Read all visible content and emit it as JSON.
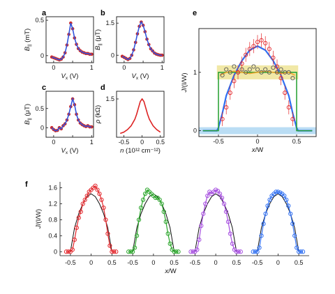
{
  "chart_data": [
    {
      "panel": "a",
      "type": "line",
      "xlabel_var": "V",
      "xlabel_sub": "x",
      "xlabel_unit": " (V)",
      "ylabel_var": "B",
      "ylabel_sub": "||",
      "ylabel_unit": " (mT)",
      "xlim": [
        -0.2,
        1.05
      ],
      "ylim": [
        -0.1,
        0.55
      ],
      "xticks": [
        0,
        0.5,
        1
      ],
      "xticklabels": [
        "0",
        "",
        "1"
      ],
      "yticks": [
        0,
        0.5
      ],
      "yticklabels": [
        "0",
        "0.5"
      ],
      "series": [
        {
          "marker": "circle",
          "color": "#cc2b2b",
          "x": [
            -0.05,
            0.0,
            0.05,
            0.1,
            0.15,
            0.2,
            0.25,
            0.3,
            0.35,
            0.4,
            0.45,
            0.5,
            0.55,
            0.6,
            0.65,
            0.7,
            0.75,
            0.8,
            0.85,
            0.9,
            0.95,
            1.0
          ],
          "y": [
            -0.02,
            -0.03,
            -0.04,
            -0.05,
            -0.06,
            -0.05,
            -0.02,
            0.04,
            0.15,
            0.3,
            0.46,
            0.38,
            0.25,
            0.16,
            0.1,
            0.07,
            0.05,
            0.04,
            0.03,
            0.03,
            0.02,
            0.02
          ]
        },
        {
          "marker": "line",
          "color": "#3355dd",
          "x": [
            -0.05,
            0.0,
            0.05,
            0.1,
            0.15,
            0.2,
            0.25,
            0.3,
            0.35,
            0.4,
            0.45,
            0.5,
            0.55,
            0.6,
            0.65,
            0.7,
            0.75,
            0.8,
            0.85,
            0.9,
            0.95,
            1.0
          ],
          "y": [
            -0.02,
            -0.03,
            -0.04,
            -0.05,
            -0.06,
            -0.05,
            -0.02,
            0.04,
            0.15,
            0.3,
            0.46,
            0.38,
            0.25,
            0.16,
            0.1,
            0.07,
            0.05,
            0.04,
            0.03,
            0.03,
            0.02,
            0.02
          ]
        }
      ]
    },
    {
      "panel": "b",
      "type": "line",
      "xlabel_var": "V",
      "xlabel_sub": "x",
      "xlabel_unit": " (V)",
      "ylabel_var": "B",
      "ylabel_sub": "||",
      "ylabel_unit": " (μT)",
      "xlim": [
        -0.2,
        1.05
      ],
      "ylim": [
        -0.35,
        1.8
      ],
      "xticks": [
        0,
        0.5,
        1
      ],
      "xticklabels": [
        "0",
        "",
        "1"
      ],
      "yticks": [
        0,
        1.5
      ],
      "yticklabels": [
        "0",
        "1.5"
      ],
      "series": [
        {
          "marker": "circle",
          "color": "#cc2b2b",
          "x": [
            -0.05,
            0.0,
            0.05,
            0.1,
            0.15,
            0.2,
            0.25,
            0.3,
            0.35,
            0.4,
            0.45,
            0.5,
            0.55,
            0.6,
            0.65,
            0.7,
            0.75,
            0.8,
            0.85,
            0.9,
            0.95,
            1.0
          ],
          "y": [
            -0.05,
            -0.1,
            -0.15,
            -0.2,
            -0.15,
            0.0,
            0.25,
            0.6,
            1.0,
            1.35,
            1.55,
            1.4,
            1.1,
            0.75,
            0.5,
            0.3,
            0.2,
            0.1,
            0.05,
            0.02,
            0.0,
            0.0
          ]
        },
        {
          "marker": "line",
          "color": "#3355dd",
          "x": [
            -0.05,
            0.0,
            0.05,
            0.1,
            0.15,
            0.2,
            0.25,
            0.3,
            0.35,
            0.4,
            0.45,
            0.5,
            0.55,
            0.6,
            0.65,
            0.7,
            0.75,
            0.8,
            0.85,
            0.9,
            0.95,
            1.0
          ],
          "y": [
            -0.05,
            -0.1,
            -0.15,
            -0.2,
            -0.15,
            0.0,
            0.25,
            0.6,
            1.0,
            1.35,
            1.55,
            1.4,
            1.1,
            0.75,
            0.5,
            0.3,
            0.2,
            0.1,
            0.05,
            0.02,
            0.0,
            0.0
          ]
        }
      ]
    },
    {
      "panel": "c",
      "type": "line",
      "xlabel_var": "V",
      "xlabel_sub": "x",
      "xlabel_unit": " (V)",
      "ylabel_var": "B",
      "ylabel_sub": "||",
      "ylabel_unit": " (μT)",
      "xlim": [
        -0.2,
        1.05
      ],
      "ylim": [
        -0.25,
        0.95
      ],
      "xticks": [
        0,
        0.5,
        1
      ],
      "xticklabels": [
        "0",
        "",
        "1"
      ],
      "yticks": [
        0,
        0.5
      ],
      "yticklabels": [
        "0",
        "0.5"
      ],
      "series": [
        {
          "marker": "circle",
          "color": "#cc2b2b",
          "x": [
            -0.05,
            0.0,
            0.05,
            0.1,
            0.15,
            0.2,
            0.25,
            0.3,
            0.35,
            0.4,
            0.45,
            0.5,
            0.55,
            0.6,
            0.65,
            0.7,
            0.75,
            0.8,
            0.85,
            0.9,
            0.95,
            1.0
          ],
          "y": [
            0.0,
            -0.05,
            -0.08,
            -0.07,
            0.0,
            -0.03,
            0.05,
            0.1,
            0.2,
            0.35,
            0.55,
            0.75,
            0.6,
            0.35,
            0.2,
            0.12,
            0.08,
            0.05,
            0.03,
            0.05,
            0.02,
            0.02
          ]
        },
        {
          "marker": "line",
          "color": "#3355dd",
          "x": [
            -0.05,
            0.0,
            0.05,
            0.1,
            0.15,
            0.2,
            0.25,
            0.3,
            0.35,
            0.4,
            0.45,
            0.5,
            0.55,
            0.6,
            0.65,
            0.7,
            0.75,
            0.8,
            0.85,
            0.9,
            0.95,
            1.0
          ],
          "y": [
            0.0,
            -0.05,
            -0.08,
            -0.07,
            0.0,
            -0.03,
            0.05,
            0.1,
            0.2,
            0.35,
            0.55,
            0.75,
            0.6,
            0.35,
            0.2,
            0.12,
            0.08,
            0.05,
            0.03,
            0.05,
            0.02,
            0.02
          ]
        }
      ]
    },
    {
      "panel": "d",
      "type": "line",
      "xlabel_var": "n",
      "xlabel_unit": " (10¹² cm⁻¹²)",
      "ylabel_var": "ρ",
      "ylabel_unit": " (kΩ)",
      "xlim": [
        -0.7,
        0.6
      ],
      "ylim": [
        0,
        1.8
      ],
      "xticks": [
        -0.5,
        0,
        0.5
      ],
      "xticklabels": [
        "-0.5",
        "0",
        "0.5"
      ],
      "yticks": [
        1.5
      ],
      "yticklabels": [
        "1.5"
      ],
      "series": [
        {
          "marker": "line",
          "color": "#dd2222",
          "x": [
            -0.6,
            -0.5,
            -0.4,
            -0.3,
            -0.2,
            -0.15,
            -0.1,
            -0.05,
            0.0,
            0.05,
            0.1,
            0.15,
            0.2,
            0.3,
            0.4,
            0.5
          ],
          "y": [
            0.15,
            0.2,
            0.3,
            0.45,
            0.7,
            0.9,
            1.15,
            1.4,
            1.5,
            1.4,
            1.15,
            0.9,
            0.7,
            0.45,
            0.3,
            0.2
          ]
        }
      ]
    },
    {
      "panel": "e",
      "type": "line",
      "xlabel_var": "x",
      "xlabel_unit": "/W",
      "ylabel_var": "J",
      "ylabel_unit": "/(I/W)",
      "xlim": [
        -0.75,
        0.75
      ],
      "ylim": [
        -0.1,
        1.75
      ],
      "xticks": [
        -0.5,
        0,
        0.5
      ],
      "xticklabels": [
        "-0.5",
        "0",
        "0.5"
      ],
      "yticks": [
        0,
        1
      ],
      "yticklabels": [
        "0",
        "1"
      ],
      "series": [
        {
          "marker": "line",
          "color": "#2f6ff2",
          "x": [
            -0.7,
            -0.52,
            -0.5,
            -0.45,
            -0.4,
            -0.3,
            -0.2,
            -0.1,
            0.0,
            0.1,
            0.2,
            0.3,
            0.4,
            0.45,
            0.5,
            0.52,
            0.7
          ],
          "y": [
            0.0,
            0.0,
            0.05,
            0.3,
            0.6,
            0.95,
            1.2,
            1.38,
            1.45,
            1.38,
            1.2,
            0.95,
            0.6,
            0.3,
            0.05,
            0.0,
            0.0
          ]
        },
        {
          "marker": "line",
          "color": "#2fa53a",
          "x": [
            -0.7,
            -0.5,
            -0.5,
            -0.4,
            0.4,
            0.5,
            0.5,
            0.7
          ],
          "y": [
            0.0,
            0.0,
            1.0,
            1.0,
            1.0,
            1.0,
            0.0,
            0.0
          ]
        },
        {
          "marker": "line",
          "color": "#f0a830",
          "x": [
            -0.48,
            -0.4,
            -0.3,
            -0.2,
            -0.1,
            0.0,
            0.1,
            0.2,
            0.3,
            0.4,
            0.48
          ],
          "y": [
            0.95,
            1.0,
            1.02,
            1.0,
            0.98,
            1.0,
            1.02,
            1.0,
            0.98,
            1.0,
            0.95
          ]
        },
        {
          "marker": "circle",
          "color": "#555555",
          "x": [
            -0.45,
            -0.4,
            -0.35,
            -0.3,
            -0.25,
            -0.2,
            -0.15,
            -0.1,
            -0.05,
            0.0,
            0.05,
            0.1,
            0.15,
            0.2,
            0.25,
            0.3,
            0.35,
            0.4,
            0.45
          ],
          "y": [
            0.95,
            1.05,
            1.0,
            1.1,
            1.0,
            1.05,
            1.0,
            1.05,
            1.1,
            1.05,
            1.0,
            1.05,
            1.0,
            1.08,
            1.0,
            1.05,
            1.0,
            1.0,
            0.9
          ]
        },
        {
          "marker": "circle",
          "color": "#e3262b",
          "x": [
            -0.45,
            -0.4,
            -0.35,
            -0.3,
            -0.25,
            -0.2,
            -0.15,
            -0.1,
            -0.05,
            0.0,
            0.05,
            0.1,
            0.15,
            0.2,
            0.25,
            0.3,
            0.35,
            0.4,
            0.45
          ],
          "y": [
            0.2,
            0.4,
            0.65,
            0.85,
            1.0,
            1.15,
            1.3,
            1.4,
            1.45,
            1.52,
            1.55,
            1.5,
            1.4,
            1.25,
            1.1,
            0.9,
            0.65,
            0.4,
            0.2
          ]
        }
      ]
    },
    {
      "panel": "f",
      "type": "line",
      "xlabel_var": "x",
      "xlabel_unit": "/W",
      "ylabel_var": "J",
      "ylabel_unit": "/(I/W)",
      "ylim": [
        -0.1,
        1.75
      ],
      "yticks": [
        0,
        0.4,
        0.8,
        1.2,
        1.6
      ],
      "yticklabels": [
        "0",
        "0.4",
        "0.8",
        "1.2",
        "1.6"
      ],
      "xticklabels": [
        "-0.5",
        "0",
        "0.5",
        "-0.5",
        "0",
        "0.5",
        "-0.5",
        "0",
        "0.5",
        "-0.5",
        "0",
        "0.5"
      ],
      "groups": [
        {
          "color": "#e3262b",
          "x": [
            -0.6,
            -0.55,
            -0.5,
            -0.45,
            -0.4,
            -0.35,
            -0.3,
            -0.25,
            -0.2,
            -0.15,
            -0.1,
            -0.05,
            0.0,
            0.05,
            0.1,
            0.15,
            0.2,
            0.25,
            0.3,
            0.35,
            0.4,
            0.45,
            0.5,
            0.55,
            0.6
          ],
          "y": [
            0.0,
            0.0,
            0.0,
            0.05,
            0.3,
            0.6,
            0.85,
            1.0,
            1.2,
            1.3,
            1.4,
            1.5,
            1.55,
            1.6,
            1.65,
            1.55,
            1.45,
            1.3,
            1.1,
            0.8,
            0.45,
            0.15,
            0.0,
            0.0,
            0.0
          ]
        },
        {
          "color": "#2aa52a",
          "x": [
            -0.6,
            -0.55,
            -0.5,
            -0.45,
            -0.4,
            -0.35,
            -0.3,
            -0.25,
            -0.2,
            -0.15,
            -0.1,
            -0.05,
            0.0,
            0.05,
            0.1,
            0.15,
            0.2,
            0.25,
            0.3,
            0.35,
            0.4,
            0.45,
            0.5,
            0.55,
            0.6
          ],
          "y": [
            0.0,
            0.0,
            0.0,
            0.1,
            0.4,
            0.8,
            1.1,
            1.3,
            1.45,
            1.55,
            1.5,
            1.45,
            1.4,
            1.35,
            1.35,
            1.3,
            1.2,
            1.0,
            0.75,
            0.45,
            0.2,
            0.05,
            0.0,
            0.0,
            0.0
          ]
        },
        {
          "color": "#a64ee0",
          "x": [
            -0.6,
            -0.55,
            -0.5,
            -0.45,
            -0.4,
            -0.35,
            -0.3,
            -0.25,
            -0.2,
            -0.15,
            -0.1,
            -0.05,
            0.0,
            0.05,
            0.1,
            0.15,
            0.2,
            0.25,
            0.3,
            0.35,
            0.4,
            0.45,
            0.5,
            0.55,
            0.6
          ],
          "y": [
            0.0,
            0.0,
            0.0,
            0.05,
            0.3,
            0.65,
            0.95,
            1.2,
            1.4,
            1.5,
            1.45,
            1.5,
            1.55,
            1.52,
            1.45,
            1.35,
            1.2,
            1.0,
            0.75,
            0.45,
            0.2,
            0.05,
            0.0,
            0.0,
            0.0
          ]
        },
        {
          "color": "#2f6ff2",
          "x": [
            -0.6,
            -0.55,
            -0.5,
            -0.45,
            -0.4,
            -0.35,
            -0.3,
            -0.25,
            -0.2,
            -0.15,
            -0.1,
            -0.05,
            0.0,
            0.05,
            0.1,
            0.15,
            0.2,
            0.25,
            0.3,
            0.35,
            0.4,
            0.45,
            0.5,
            0.55,
            0.6
          ],
          "y": [
            0.0,
            0.0,
            0.0,
            0.1,
            0.4,
            0.7,
            0.95,
            1.15,
            1.3,
            1.4,
            1.45,
            1.5,
            1.5,
            1.48,
            1.45,
            1.4,
            1.3,
            1.15,
            0.95,
            0.7,
            0.4,
            0.1,
            0.0,
            0.0,
            0.0
          ]
        }
      ],
      "model": {
        "color": "#111111",
        "x": [
          -0.5,
          -0.45,
          -0.4,
          -0.3,
          -0.2,
          -0.1,
          0.0,
          0.1,
          0.2,
          0.3,
          0.4,
          0.45,
          0.5
        ],
        "y": [
          0.0,
          0.3,
          0.6,
          0.95,
          1.2,
          1.38,
          1.45,
          1.38,
          1.2,
          0.95,
          0.6,
          0.3,
          0.0
        ]
      }
    }
  ]
}
